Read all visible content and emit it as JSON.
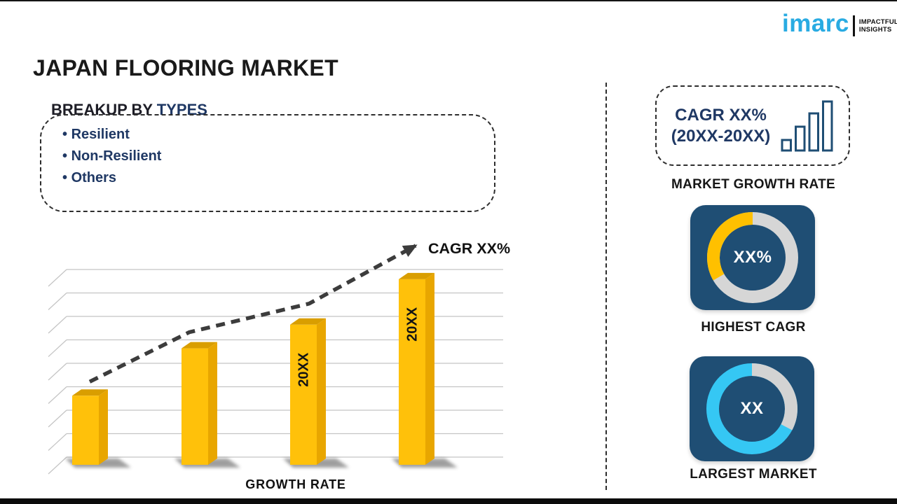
{
  "page": {
    "title": "JAPAN FLOORING MARKET"
  },
  "logo": {
    "brand": "imarc",
    "tagline_line1": "IMPACTFUL",
    "tagline_line2": "INSIGHTS",
    "brand_color": "#29ABE2"
  },
  "breakup": {
    "heading_prefix": "BREAKUP BY ",
    "heading_highlight": "TYPES",
    "accent_color": "#1F3864",
    "items": [
      "Resilient",
      "Non-Resilient",
      "Others"
    ]
  },
  "chart_data": {
    "type": "bar",
    "title": "",
    "xlabel": "GROWTH RATE",
    "ylabel": "",
    "categories": [
      "",
      "",
      "20XX",
      "20XX"
    ],
    "values": [
      35,
      59,
      71,
      94
    ],
    "ylim": [
      0,
      100
    ],
    "grid": "horizontal-3d",
    "gridline_count": 9,
    "legend": "none",
    "trend_line": {
      "style": "dashed-arrow",
      "label": "CAGR XX%"
    },
    "colors": {
      "bar_front": "#FFC10A",
      "bar_side": "#E8A600",
      "bar_top": "#D99E00",
      "grid": "#C4C4C4",
      "trend": "#3C3C3C",
      "label": "#111111"
    }
  },
  "side_panel": {
    "cagr_box": {
      "line1": "CAGR XX%",
      "line2": "(20XX-20XX)",
      "icon": "growth-bars-icon",
      "text_color": "#1F3864",
      "icon_color": "#1F4E74"
    },
    "market_growth_label": "MARKET GROWTH RATE",
    "highest_cagr": {
      "type": "donut",
      "center_label": "XX%",
      "caption": "HIGHEST CAGR",
      "card_color": "#1F4E74",
      "ring_base_color": "#D6D6D6",
      "ring_accent_color": "#FFC000",
      "accent_start_deg": 240,
      "accent_sweep_deg": 120
    },
    "largest_market": {
      "type": "donut",
      "center_label": "XX",
      "caption": "LARGEST MARKET",
      "card_color": "#1F4E74",
      "ring_base_color": "#35C7F4",
      "ring_accent_color": "#D3D3D3",
      "accent_start_deg": 0,
      "accent_sweep_deg": 118
    }
  }
}
